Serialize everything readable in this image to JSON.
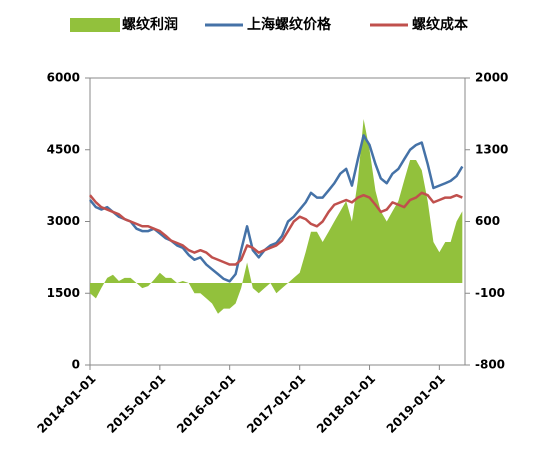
{
  "chart_data": {
    "type": "combo",
    "x": [
      "2014-01-01",
      "2014-02-01",
      "2014-03-01",
      "2014-04-01",
      "2014-05-01",
      "2014-06-01",
      "2014-07-01",
      "2014-08-01",
      "2014-09-01",
      "2014-10-01",
      "2014-11-01",
      "2014-12-01",
      "2015-01-01",
      "2015-02-01",
      "2015-03-01",
      "2015-04-01",
      "2015-05-01",
      "2015-06-01",
      "2015-07-01",
      "2015-08-01",
      "2015-09-01",
      "2015-10-01",
      "2015-11-01",
      "2015-12-01",
      "2016-01-01",
      "2016-02-01",
      "2016-03-01",
      "2016-04-01",
      "2016-05-01",
      "2016-06-01",
      "2016-07-01",
      "2016-08-01",
      "2016-09-01",
      "2016-10-01",
      "2016-11-01",
      "2016-12-01",
      "2017-01-01",
      "2017-02-01",
      "2017-03-01",
      "2017-04-01",
      "2017-05-01",
      "2017-06-01",
      "2017-07-01",
      "2017-08-01",
      "2017-09-01",
      "2017-10-01",
      "2017-11-01",
      "2017-12-01",
      "2018-01-01",
      "2018-02-01",
      "2018-03-01",
      "2018-04-01",
      "2018-05-01",
      "2018-06-01",
      "2018-07-01",
      "2018-08-01",
      "2018-09-01",
      "2018-10-01",
      "2018-11-01",
      "2018-12-01",
      "2019-01-01",
      "2019-02-01",
      "2019-03-01",
      "2019-04-01",
      "2019-05-01"
    ],
    "series": [
      {
        "name": "螺纹利润",
        "type": "area",
        "axis": "y2",
        "color": "#92c13c",
        "values": [
          -100,
          -150,
          -50,
          50,
          80,
          20,
          50,
          50,
          0,
          -50,
          -30,
          30,
          100,
          50,
          50,
          0,
          20,
          0,
          -100,
          -100,
          -150,
          -200,
          -300,
          -250,
          -250,
          -200,
          -50,
          200,
          -50,
          -100,
          -50,
          0,
          -100,
          -50,
          0,
          50,
          100,
          300,
          500,
          500,
          400,
          500,
          600,
          700,
          800,
          600,
          1000,
          1600,
          1300,
          900,
          700,
          600,
          700,
          800,
          1000,
          1200,
          1200,
          1100,
          800,
          400,
          300,
          400,
          400,
          600,
          700
        ]
      },
      {
        "name": "上海螺纹价格",
        "type": "line",
        "color": "#4572a7",
        "values": [
          3450,
          3300,
          3250,
          3300,
          3200,
          3100,
          3050,
          3000,
          2850,
          2800,
          2800,
          2850,
          2750,
          2650,
          2600,
          2500,
          2450,
          2300,
          2200,
          2250,
          2100,
          2000,
          1900,
          1800,
          1750,
          1900,
          2400,
          2900,
          2400,
          2250,
          2400,
          2500,
          2550,
          2700,
          3000,
          3100,
          3250,
          3400,
          3600,
          3500,
          3500,
          3650,
          3800,
          4000,
          4100,
          3750,
          4300,
          4800,
          4600,
          4200,
          3900,
          3800,
          4000,
          4100,
          4300,
          4500,
          4600,
          4650,
          4200,
          3700,
          3750,
          3800,
          3850,
          3950,
          4150
        ]
      },
      {
        "name": "螺纹成本",
        "type": "line",
        "color": "#c0504d",
        "values": [
          3550,
          3400,
          3300,
          3250,
          3200,
          3150,
          3050,
          3000,
          2950,
          2900,
          2900,
          2850,
          2800,
          2700,
          2600,
          2550,
          2500,
          2400,
          2350,
          2400,
          2350,
          2250,
          2200,
          2150,
          2100,
          2100,
          2200,
          2500,
          2450,
          2350,
          2400,
          2450,
          2500,
          2600,
          2800,
          3000,
          3100,
          3050,
          2950,
          2900,
          3000,
          3200,
          3350,
          3400,
          3450,
          3400,
          3500,
          3550,
          3500,
          3350,
          3200,
          3250,
          3400,
          3350,
          3300,
          3450,
          3500,
          3600,
          3550,
          3400,
          3450,
          3500,
          3500,
          3550,
          3500
        ]
      }
    ],
    "xlim": [
      "2014-01-01",
      "2019-05-15"
    ],
    "xticks": [
      "2014-01-01",
      "2015-01-01",
      "2016-01-01",
      "2017-01-01",
      "2018-01-01",
      "2019-01-01"
    ],
    "ylim": [
      0,
      6000
    ],
    "yticks": [
      0,
      1500,
      3000,
      4500,
      6000
    ],
    "y2lim": [
      -800,
      2000
    ],
    "y2ticks": [
      -800,
      -100,
      600,
      1300,
      2000
    ]
  }
}
